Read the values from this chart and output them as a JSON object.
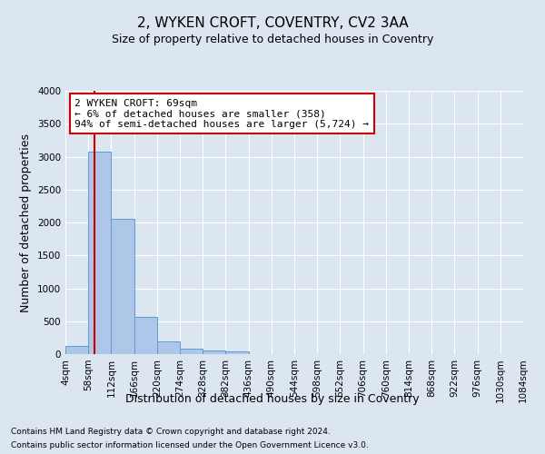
{
  "title": "2, WYKEN CROFT, COVENTRY, CV2 3AA",
  "subtitle": "Size of property relative to detached houses in Coventry",
  "xlabel": "Distribution of detached houses by size in Coventry",
  "ylabel": "Number of detached properties",
  "bin_labels": [
    "4sqm",
    "58sqm",
    "112sqm",
    "166sqm",
    "220sqm",
    "274sqm",
    "328sqm",
    "382sqm",
    "436sqm",
    "490sqm",
    "544sqm",
    "598sqm",
    "652sqm",
    "706sqm",
    "760sqm",
    "814sqm",
    "868sqm",
    "922sqm",
    "976sqm",
    "1030sqm",
    "1084sqm"
  ],
  "bar_values": [
    130,
    3070,
    2060,
    560,
    195,
    80,
    55,
    45,
    0,
    0,
    0,
    0,
    0,
    0,
    0,
    0,
    0,
    0,
    0,
    0
  ],
  "bar_color": "#aec6e8",
  "bar_edge_color": "#5b9bd5",
  "property_line_x": 1.27,
  "property_line_color": "#cc0000",
  "annotation_text": "2 WYKEN CROFT: 69sqm\n← 6% of detached houses are smaller (358)\n94% of semi-detached houses are larger (5,724) →",
  "annotation_box_color": "#ffffff",
  "annotation_box_edge_color": "#cc0000",
  "ylim": [
    0,
    4000
  ],
  "yticks": [
    0,
    500,
    1000,
    1500,
    2000,
    2500,
    3000,
    3500,
    4000
  ],
  "background_color": "#dce6f1",
  "plot_background_color": "#dce6f1",
  "footer_line1": "Contains HM Land Registry data © Crown copyright and database right 2024.",
  "footer_line2": "Contains public sector information licensed under the Open Government Licence v3.0.",
  "title_fontsize": 11,
  "subtitle_fontsize": 9,
  "tick_fontsize": 7.5,
  "ylabel_fontsize": 9,
  "xlabel_fontsize": 9,
  "annotation_fontsize": 8,
  "footer_fontsize": 6.5
}
